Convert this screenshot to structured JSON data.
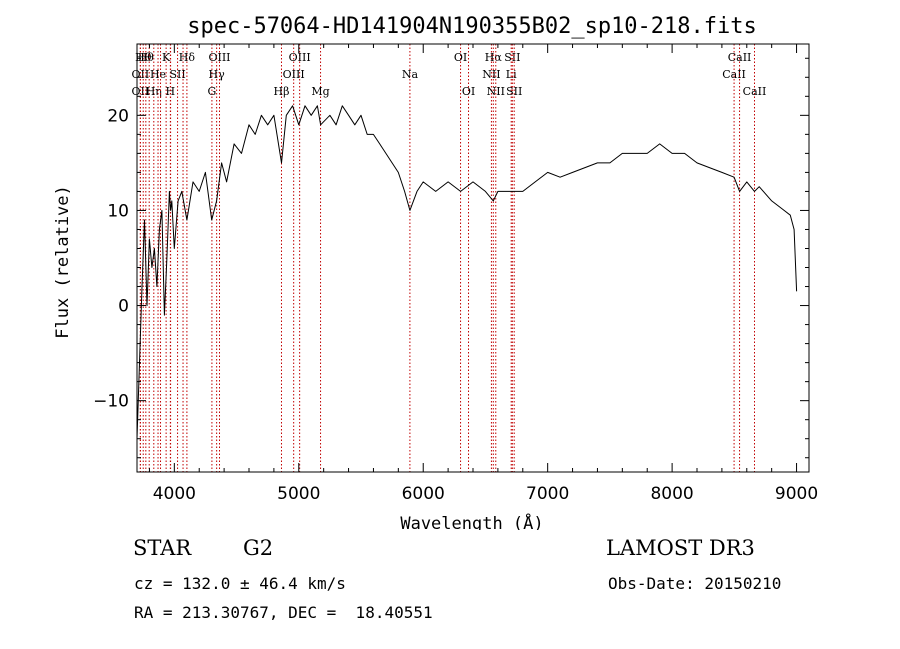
{
  "chart_data": {
    "type": "line",
    "title": "spec-57064-HD141904N190355B02_sp10-218.fits",
    "xlabel": "Wavelength (Å)",
    "ylabel": "Flux (relative)",
    "xlim": [
      3700,
      9100
    ],
    "ylim": [
      -17.5,
      27.5
    ],
    "xticks": [
      4000,
      5000,
      6000,
      7000,
      8000,
      9000
    ],
    "yticks": [
      -10,
      0,
      10,
      20
    ],
    "grid": false,
    "series": [
      {
        "x": [
          3700,
          3720,
          3740,
          3760,
          3780,
          3800,
          3820,
          3840,
          3860,
          3880,
          3900,
          3920,
          3940,
          3960,
          3970,
          3980,
          4000,
          4030,
          4060,
          4101,
          4150,
          4200,
          4250,
          4300,
          4340,
          4380,
          4420,
          4480,
          4540,
          4600,
          4650,
          4700,
          4750,
          4800,
          4861,
          4900,
          4950,
          5000,
          5050,
          5100,
          5150,
          5175,
          5250,
          5300,
          5350,
          5400,
          5450,
          5500,
          5550,
          5600,
          5650,
          5700,
          5750,
          5800,
          5850,
          5893,
          5950,
          6000,
          6100,
          6200,
          6300,
          6400,
          6500,
          6563,
          6600,
          6700,
          6800,
          6900,
          7000,
          7100,
          7200,
          7300,
          7400,
          7500,
          7600,
          7700,
          7800,
          7900,
          7950,
          8000,
          8100,
          8200,
          8300,
          8400,
          8498,
          8542,
          8600,
          8662,
          8700,
          8800,
          8900,
          8950,
          8980,
          9000
        ],
        "y": [
          -14,
          -6,
          2,
          9,
          0,
          7,
          4,
          6,
          2,
          8,
          10,
          -1,
          5,
          12,
          10,
          11,
          6,
          11,
          12,
          9,
          13,
          12,
          14,
          9,
          11,
          15,
          13,
          17,
          16,
          19,
          18,
          20,
          19,
          20,
          15,
          20,
          21,
          19,
          21,
          20,
          21,
          19,
          20,
          19,
          21,
          20,
          19,
          20,
          18,
          18,
          17,
          16,
          15,
          14,
          12,
          10,
          12,
          13,
          12,
          13,
          12,
          13,
          12,
          11,
          12,
          12,
          12,
          13,
          14,
          13.5,
          14,
          14.5,
          15,
          15,
          16,
          16,
          16,
          17,
          16.5,
          16,
          16,
          15,
          14.5,
          14,
          13.5,
          12,
          13,
          12,
          12.5,
          11,
          10,
          9.5,
          8,
          1.5
        ]
      }
    ],
    "line_color": "#000000",
    "marker_color": "#c00000",
    "markers": [
      {
        "x": 3727,
        "label": "OII",
        "row": 2
      },
      {
        "x": 3727,
        "label": "OII",
        "row": 3
      },
      {
        "x": 3750,
        "label": "Hθ",
        "row": 1
      },
      {
        "x": 3771,
        "label": "Hθ",
        "row": 1
      },
      {
        "x": 3798,
        "label": "",
        "row": 0
      },
      {
        "x": 3835,
        "label": "Hη",
        "row": 3
      },
      {
        "x": 3869,
        "label": "He",
        "row": 2
      },
      {
        "x": 3889,
        "label": "",
        "row": 0
      },
      {
        "x": 3934,
        "label": "K",
        "row": 1
      },
      {
        "x": 3968,
        "label": "H",
        "row": 3
      },
      {
        "x": 3970,
        "label": "",
        "row": 0
      },
      {
        "x": 4026,
        "label": "SII",
        "row": 2
      },
      {
        "x": 4070,
        "label": "",
        "row": 0
      },
      {
        "x": 4101,
        "label": "Hδ",
        "row": 1
      },
      {
        "x": 4302,
        "label": "G",
        "row": 3
      },
      {
        "x": 4340,
        "label": "Hγ",
        "row": 2
      },
      {
        "x": 4363,
        "label": "OIII",
        "row": 1
      },
      {
        "x": 4861,
        "label": "Hβ",
        "row": 3
      },
      {
        "x": 4959,
        "label": "OIII",
        "row": 2
      },
      {
        "x": 5007,
        "label": "OIII",
        "row": 1
      },
      {
        "x": 5175,
        "label": "Mg",
        "row": 3
      },
      {
        "x": 5893,
        "label": "Na",
        "row": 2
      },
      {
        "x": 6300,
        "label": "OI",
        "row": 1
      },
      {
        "x": 6364,
        "label": "OI",
        "row": 3
      },
      {
        "x": 6548,
        "label": "NII",
        "row": 2
      },
      {
        "x": 6563,
        "label": "Hα",
        "row": 1
      },
      {
        "x": 6583,
        "label": "NII",
        "row": 3
      },
      {
        "x": 6707,
        "label": "Li",
        "row": 2
      },
      {
        "x": 6716,
        "label": "SII",
        "row": 1
      },
      {
        "x": 6731,
        "label": "SII",
        "row": 3
      },
      {
        "x": 8498,
        "label": "CaII",
        "row": 2
      },
      {
        "x": 8542,
        "label": "CaII",
        "row": 1
      },
      {
        "x": 8662,
        "label": "CaII",
        "row": 3
      }
    ]
  },
  "info": {
    "object_class": "STAR",
    "subclass": "G2",
    "survey": "LAMOST DR3",
    "cz": "cz = 132.0 ± 46.4 km/s",
    "obs_date": "Obs-Date: 20150210",
    "radec": "RA = 213.30767, DEC =  18.40551"
  }
}
